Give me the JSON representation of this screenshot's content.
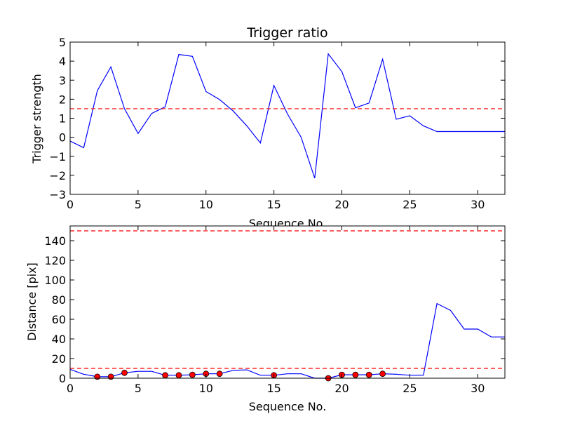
{
  "chart_data": [
    {
      "type": "line",
      "title": "Trigger ratio",
      "xlabel": "Sequence No.",
      "ylabel": "Trigger strength",
      "xlim": [
        0,
        32
      ],
      "ylim": [
        -3,
        5
      ],
      "xticks": [
        "0",
        "5",
        "10",
        "15",
        "20",
        "25",
        "30"
      ],
      "yticks": [
        "−3",
        "−2",
        "−1",
        "0",
        "1",
        "2",
        "3",
        "4",
        "5"
      ],
      "grid": false,
      "series": [
        {
          "color": "#0000ff",
          "x": [
            0,
            1,
            2,
            3,
            4,
            5,
            6,
            7,
            8,
            9,
            10,
            11,
            12,
            13,
            14,
            15,
            16,
            17,
            18,
            19,
            20,
            21,
            22,
            23,
            24,
            25,
            26,
            27,
            28,
            29,
            30,
            31,
            32
          ],
          "y": [
            -0.2,
            -0.55,
            2.45,
            3.7,
            1.5,
            0.2,
            1.25,
            1.6,
            4.35,
            4.25,
            2.4,
            1.98,
            1.38,
            0.6,
            -0.3,
            2.72,
            1.22,
            0.0,
            -2.15,
            4.38,
            3.45,
            1.55,
            1.8,
            4.1,
            0.95,
            1.13,
            0.6,
            0.3,
            0.3,
            0.3,
            0.3,
            0.3,
            0.3
          ]
        }
      ],
      "threshold": {
        "value": 1.5,
        "color": "#ff0000",
        "style": "dashed"
      }
    },
    {
      "type": "line",
      "title": "",
      "xlabel": "Sequence No.",
      "ylabel": "Distance [pix]",
      "xlim": [
        0,
        32
      ],
      "ylim": [
        0,
        155
      ],
      "xticks": [
        "0",
        "5",
        "10",
        "15",
        "20",
        "25",
        "30"
      ],
      "yticks": [
        "0",
        "20",
        "40",
        "60",
        "80",
        "100",
        "120",
        "140"
      ],
      "grid": false,
      "series": [
        {
          "color": "#0000ff",
          "x": [
            0,
            1,
            2,
            3,
            4,
            5,
            6,
            7,
            8,
            9,
            10,
            11,
            12,
            13,
            14,
            15,
            16,
            17,
            18,
            19,
            20,
            21,
            22,
            23,
            24,
            25,
            26,
            27,
            28,
            29,
            30,
            31,
            32
          ],
          "y": [
            9,
            4,
            1.5,
            1.5,
            5.5,
            7,
            7,
            3,
            3,
            3.5,
            4.5,
            4.5,
            8,
            8.5,
            3,
            3,
            4.5,
            4.5,
            0,
            0,
            3.5,
            3.5,
            3.5,
            4.5,
            4,
            3,
            3,
            76,
            69,
            50,
            50,
            42,
            42
          ]
        }
      ],
      "markers": {
        "color": "#ff0000",
        "x": [
          2,
          3,
          4,
          7,
          8,
          9,
          10,
          11,
          15,
          19,
          20,
          21,
          22,
          23
        ],
        "y": [
          1.5,
          1.5,
          5.5,
          3,
          3,
          3.5,
          4.5,
          4.5,
          3,
          0,
          3.5,
          3.5,
          3.5,
          4.5
        ]
      },
      "thresholds": [
        {
          "value": 150,
          "color": "#ff0000",
          "style": "dashed"
        },
        {
          "value": 10,
          "color": "#ff0000",
          "style": "dashed"
        }
      ]
    }
  ]
}
